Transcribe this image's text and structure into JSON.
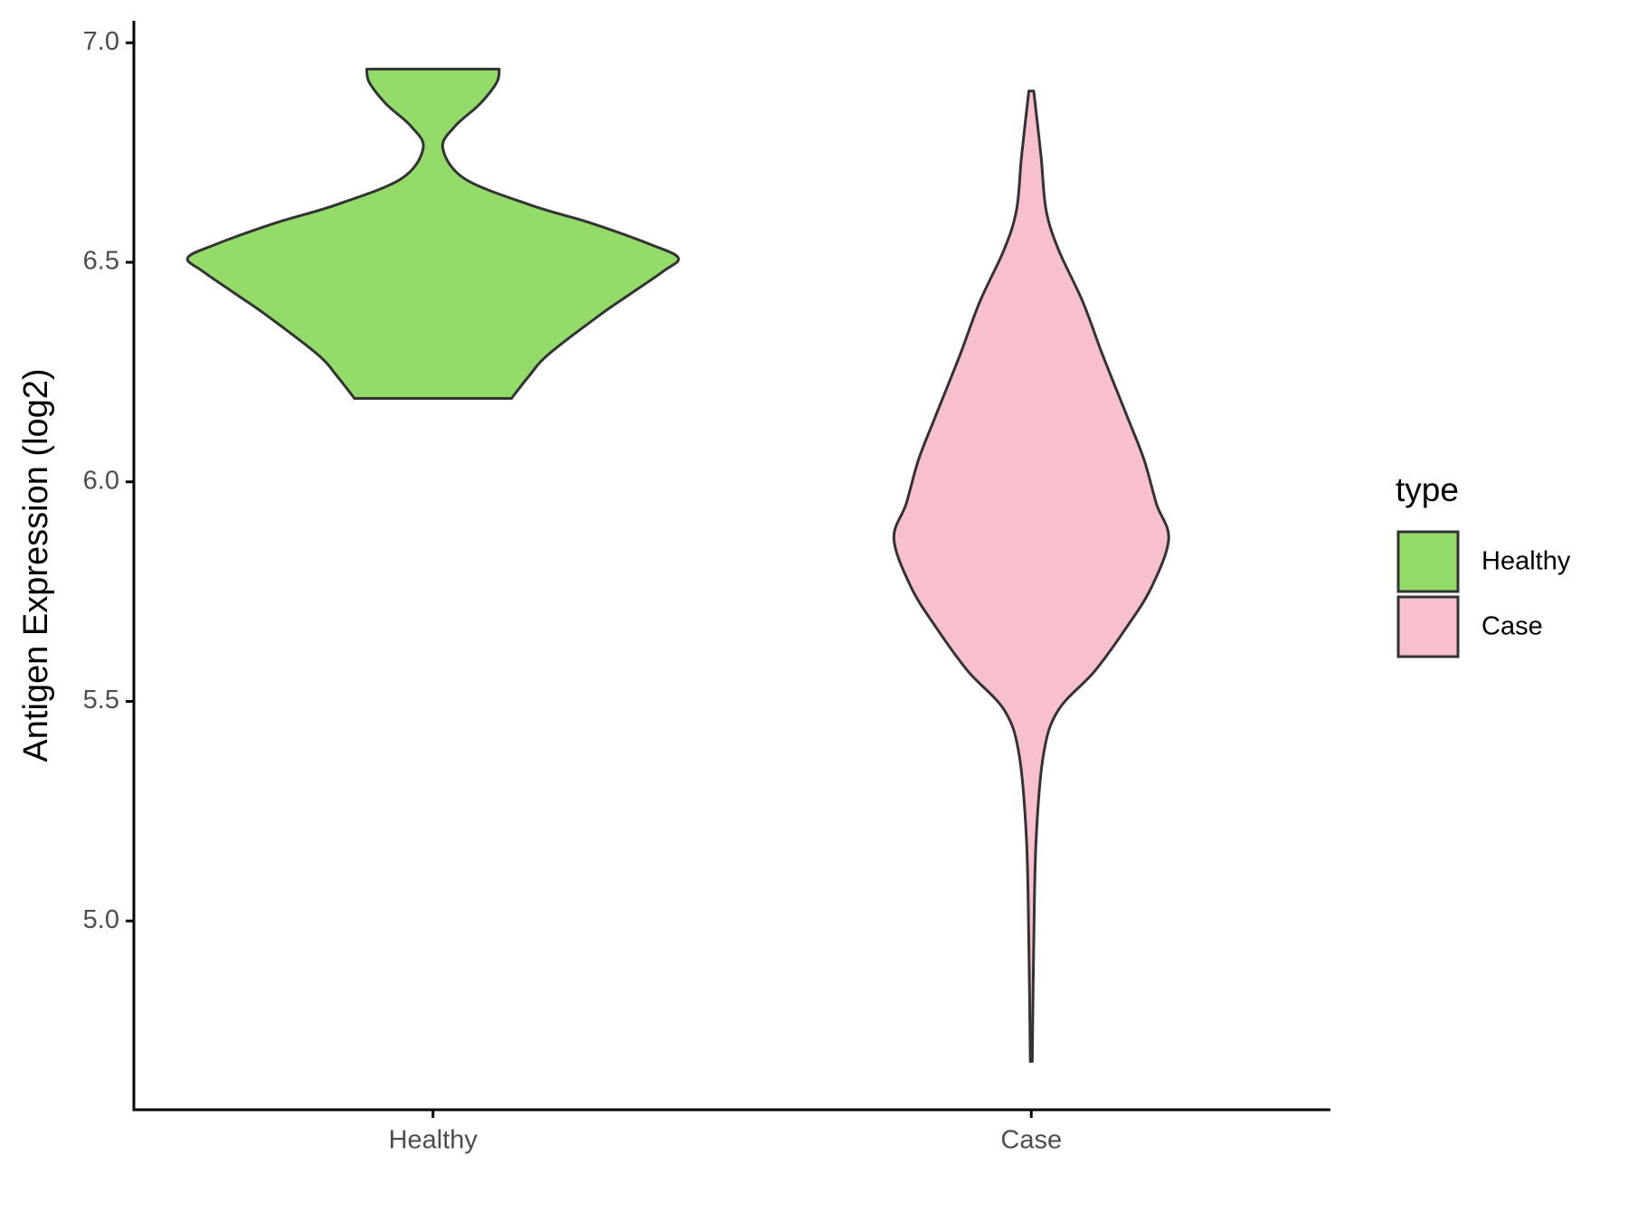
{
  "chart_data": {
    "type": "violin",
    "y_label": "Antigen Expression (log2)",
    "legend_title": "type",
    "categories": [
      "Healthy",
      "Case"
    ],
    "ylim": [
      4.57,
      7.05
    ],
    "yticks": [
      {
        "value": 5,
        "label": "5.0"
      },
      {
        "value": 5.5,
        "label": "5.5"
      },
      {
        "value": 6,
        "label": "6.0"
      },
      {
        "value": 6.5,
        "label": "6.5"
      },
      {
        "value": 7,
        "label": "7.0"
      }
    ],
    "grid": false,
    "series": [
      {
        "name": "Healthy",
        "color": "#93dc6a",
        "y": [
          6.19,
          6.24,
          6.29,
          6.38,
          6.43,
          6.48,
          6.51,
          6.54,
          6.59,
          6.63,
          6.69,
          6.76,
          6.81,
          6.86,
          6.91,
          6.94
        ],
        "width": [
          0.32,
          0.39,
          0.47,
          0.68,
          0.81,
          0.94,
          1.0,
          0.89,
          0.64,
          0.4,
          0.13,
          0.04,
          0.09,
          0.19,
          0.26,
          0.27
        ]
      },
      {
        "name": "Case",
        "color": "#f8c0cc",
        "y": [
          4.68,
          4.95,
          5.19,
          5.38,
          5.48,
          5.57,
          5.67,
          5.76,
          5.87,
          5.95,
          6.05,
          6.15,
          6.29,
          6.41,
          6.53,
          6.62,
          6.74,
          6.89
        ],
        "width": [
          0.004,
          0.01,
          0.02,
          0.05,
          0.11,
          0.26,
          0.39,
          0.49,
          0.56,
          0.51,
          0.46,
          0.39,
          0.29,
          0.21,
          0.11,
          0.06,
          0.04,
          0.01
        ]
      }
    ]
  }
}
